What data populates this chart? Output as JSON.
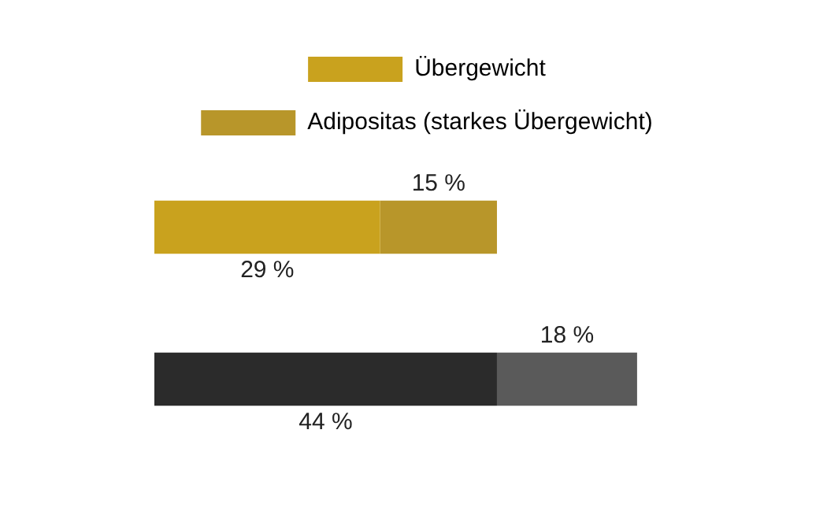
{
  "chart_data": {
    "type": "bar",
    "orientation": "horizontal",
    "stacked": true,
    "categories": [
      null,
      null
    ],
    "tick_labels": false,
    "legend": "top",
    "series": [
      {
        "name": "Übergewicht",
        "colors": [
          "#c9a21e",
          "#2b2b2b"
        ],
        "values": [
          29,
          44
        ],
        "value_labels": [
          "29 %",
          "44 %"
        ]
      },
      {
        "name": "Adipositas (starkes Übergewicht)",
        "colors": [
          "#b8962a",
          "#5a5a5a"
        ],
        "values": [
          15,
          18
        ],
        "value_labels": [
          "15 %",
          "18 %"
        ]
      }
    ]
  }
}
